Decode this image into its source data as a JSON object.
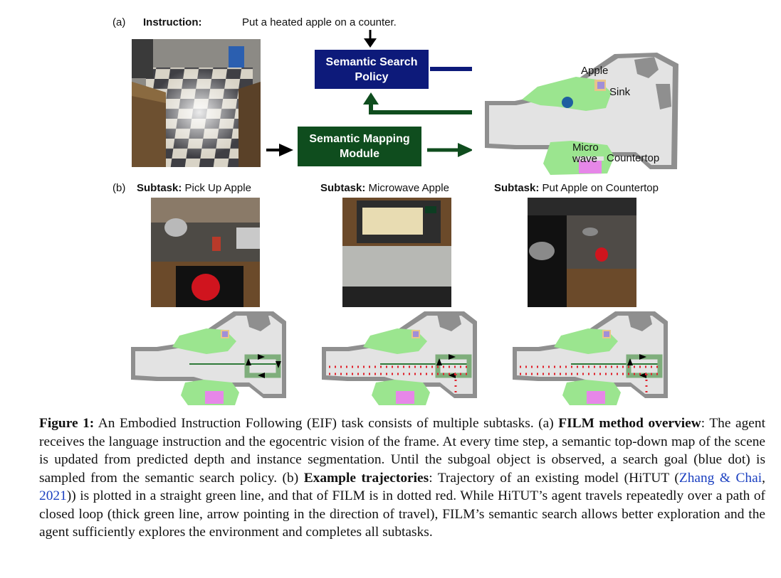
{
  "panel_a": {
    "tag": "(a)",
    "instruction_label": "Instruction:",
    "instruction_text": "Put a heated apple on a counter.",
    "search_box": "Semantic Search Policy",
    "mapping_box": "Semantic Mapping Module",
    "map_labels": {
      "apple": "Apple",
      "sink": "Sink",
      "microwave_line1": "Micro",
      "microwave_line2": "wave",
      "countertop": "Countertop"
    }
  },
  "panel_b": {
    "tag": "(b)",
    "subtasks": [
      {
        "label": "Subtask:",
        "text": "Pick Up Apple"
      },
      {
        "label": "Subtask:",
        "text": "Microwave Apple"
      },
      {
        "label": "Subtask:",
        "text": "Put Apple on Countertop"
      }
    ]
  },
  "caption": {
    "fig_label": "Figure 1:",
    "s1": " An Embodied Instruction Following (EIF) task consists of multiple subtasks. (a) ",
    "b1": "FILM method overview",
    "s2": ": The agent receives the language instruction and the egocentric vision of the frame. At every time step, a semantic top-down map of the scene is updated from predicted depth and instance segmentation. Until the subgoal object is observed, a search goal (blue dot) is sampled from the semantic search policy. (b) ",
    "b2": "Example trajectories",
    "s3": ": Trajectory of an existing model (HiTUT (",
    "cite_author": "Zhang & Chai",
    "cite_sep": ", ",
    "cite_year": "2021",
    "s4": ")) is plotted in a straight green line, and that of FILM is in dotted red. While HiTUT’s agent travels repeatedly over a path of closed loop (thick green line, arrow pointing in the direction of travel), FILM’s semantic search allows better exploration and the agent sufficiently explores the environment and completes all subtasks."
  },
  "colors": {
    "navy": "#0d1a7a",
    "dark_green": "#0f4d1e",
    "map_green": "#9be58f",
    "map_gray": "#e3e3e3",
    "wall_gray": "#8f8f8f",
    "blue_dot": "#1f5fa0",
    "trajectory_red": "#e0202a",
    "magenta": "#e687e8",
    "cite_blue": "#1a3fc0"
  },
  "icons": [
    "down-arrow-icon",
    "right-arrow-icon",
    "search-goal-dot-icon"
  ]
}
